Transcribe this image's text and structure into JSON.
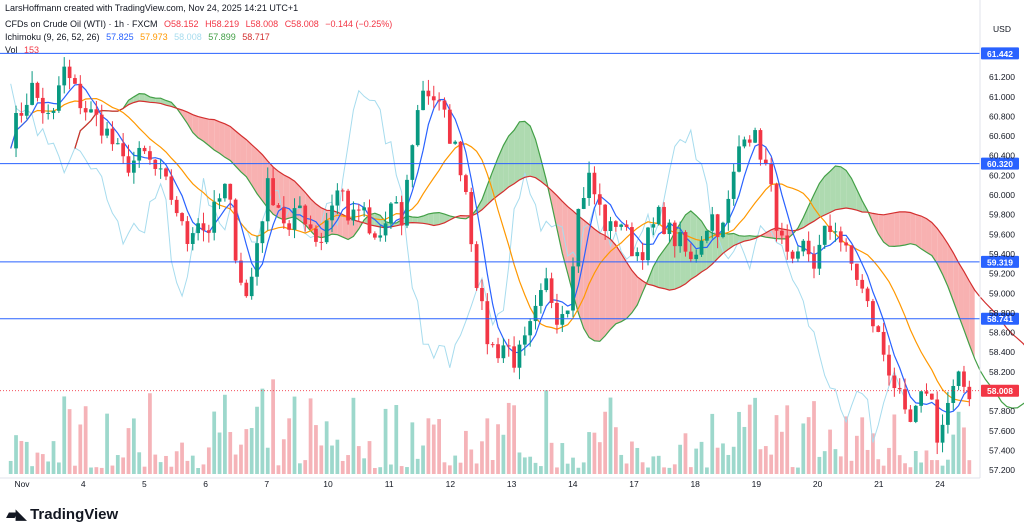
{
  "header": {
    "credit": "LarsHoffmann created with TradingView.com, Nov 24, 2025 14:21 UTC+1",
    "symbol": "CFDs on Crude Oil (WTI) · 1h · FXCM",
    "ohlc": {
      "o": "O58.152",
      "h": "H58.219",
      "l": "L58.008",
      "c": "C58.008",
      "chg": "−0.144 (−0.25%)"
    },
    "ichimoku": {
      "label": "Ichimoku (9, 26, 52, 26)",
      "v1": "57.825",
      "v2": "57.973",
      "v3": "58.008",
      "v4": "57.899",
      "v5": "58.717"
    },
    "vol_label": "Vol",
    "vol_value": "153"
  },
  "currency": "USD",
  "logo_text": "TradingView",
  "colors": {
    "up": "#089981",
    "down": "#f23645",
    "tenkan": "#2962ff",
    "kijun": "#ff9800",
    "chikou": "#a7dcee",
    "span_a": "#43a047",
    "span_b": "#d32f2f",
    "hline": "#2962ff",
    "price": "#f23645"
  },
  "chart_data": {
    "type": "candlestick",
    "y_range": [
      57.16,
      61.68
    ],
    "y_ticks": [
      "61.200",
      "61.000",
      "60.800",
      "60.600",
      "60.400",
      "60.200",
      "60.000",
      "59.800",
      "59.600",
      "59.400",
      "59.200",
      "59.000",
      "58.800",
      "58.600",
      "58.400",
      "58.200",
      "57.800",
      "57.600",
      "57.400",
      "57.200"
    ],
    "x_ticks": [
      "Nov",
      "4",
      "5",
      "6",
      "7",
      "10",
      "11",
      "12",
      "13",
      "14",
      "17",
      "18",
      "19",
      "20",
      "21",
      "24"
    ],
    "horizontal_levels": [
      "61.442",
      "60.320",
      "59.319",
      "58.741"
    ],
    "last_price": "58.008",
    "price_path": [
      [
        0,
        60.6
      ],
      [
        2,
        61.1
      ],
      [
        4,
        60.7
      ],
      [
        5,
        61.3
      ],
      [
        7,
        60.9
      ],
      [
        9,
        60.7
      ],
      [
        11,
        60.3
      ],
      [
        13,
        60.4
      ],
      [
        15,
        60.1
      ],
      [
        16,
        59.9
      ],
      [
        17,
        59.5
      ],
      [
        18,
        59.8
      ],
      [
        19,
        59.6
      ],
      [
        20,
        59.9
      ],
      [
        21,
        60.1
      ],
      [
        22,
        59.3
      ],
      [
        23,
        58.9
      ],
      [
        24,
        59.6
      ],
      [
        25,
        60.1
      ],
      [
        26,
        59.9
      ],
      [
        27,
        59.6
      ],
      [
        28,
        59.9
      ],
      [
        29,
        59.7
      ],
      [
        30,
        59.5
      ],
      [
        31,
        59.9
      ],
      [
        32,
        60.1
      ],
      [
        33,
        59.7
      ],
      [
        34,
        59.9
      ],
      [
        35,
        59.5
      ],
      [
        36,
        59.6
      ],
      [
        37,
        59.9
      ],
      [
        38,
        59.7
      ],
      [
        39,
        60.6
      ],
      [
        40,
        61.1
      ],
      [
        41,
        61.0
      ],
      [
        42,
        60.8
      ],
      [
        43,
        60.5
      ],
      [
        44,
        60.2
      ],
      [
        45,
        59.3
      ],
      [
        46,
        58.6
      ],
      [
        47,
        58.4
      ],
      [
        48,
        58.5
      ],
      [
        49,
        58.3
      ],
      [
        50,
        58.5
      ],
      [
        51,
        58.8
      ],
      [
        52,
        59.1
      ],
      [
        53,
        58.8
      ],
      [
        54,
        58.9
      ],
      [
        55,
        59.8
      ],
      [
        56,
        60.2
      ],
      [
        57,
        59.9
      ],
      [
        58,
        59.6
      ],
      [
        59,
        59.8
      ],
      [
        60,
        59.5
      ],
      [
        61,
        59.4
      ],
      [
        62,
        59.6
      ],
      [
        63,
        59.8
      ],
      [
        64,
        59.6
      ],
      [
        65,
        59.5
      ],
      [
        66,
        59.3
      ],
      [
        67,
        59.6
      ],
      [
        68,
        59.8
      ],
      [
        69,
        59.6
      ],
      [
        70,
        60.1
      ],
      [
        71,
        60.7
      ],
      [
        72,
        60.6
      ],
      [
        73,
        60.4
      ],
      [
        74,
        59.9
      ],
      [
        75,
        59.4
      ],
      [
        76,
        59.2
      ],
      [
        77,
        59.5
      ],
      [
        78,
        59.3
      ],
      [
        79,
        59.6
      ],
      [
        80,
        59.7
      ],
      [
        81,
        59.4
      ],
      [
        82,
        59.2
      ],
      [
        83,
        58.9
      ],
      [
        84,
        58.6
      ],
      [
        85,
        58.3
      ],
      [
        86,
        58.0
      ],
      [
        87,
        57.6
      ],
      [
        88,
        57.8
      ],
      [
        89,
        58.1
      ],
      [
        90,
        57.5
      ],
      [
        91,
        57.9
      ],
      [
        92,
        58.1
      ],
      [
        93,
        58.0
      ]
    ],
    "volume_range": [
      0,
      100
    ]
  }
}
